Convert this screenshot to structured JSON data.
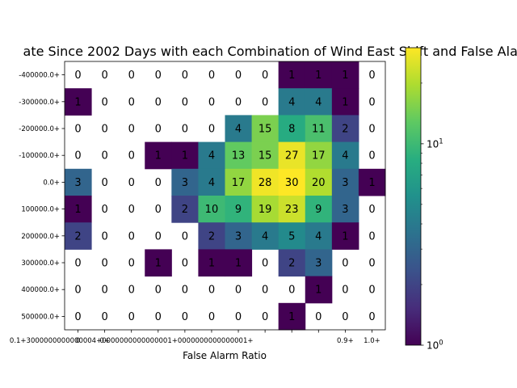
{
  "chart_data": {
    "type": "heatmap",
    "title": "ate Since 2002 Days with each Combination of Wind East Shift and False Alar",
    "xlabel": "False Alarm Ratio",
    "ylabel": "",
    "x_ticks": [
      "0",
      "0+",
      "0.1+",
      "0.2+",
      "0.3+",
      "0.4+",
      "0.5+",
      "0.6+",
      "0.7+",
      "0.8+",
      "0.9+",
      "1.0+"
    ],
    "x_tick_display": [
      "0",
      "0+",
      "0.1+3000000000000004+0000000000000001+0000000000000001+",
      "",
      "",
      "",
      "",
      "",
      "",
      "",
      "0.9+",
      "1.0+"
    ],
    "y_ticks": [
      "-400000.0+",
      "-300000.0+",
      "-200000.0+",
      "-100000.0+",
      "0.0+",
      "100000.0+",
      "200000.0+",
      "300000.0+",
      "400000.0+",
      "500000.0+"
    ],
    "values": [
      [
        0,
        0,
        0,
        0,
        0,
        0,
        0,
        0,
        1,
        1,
        1,
        0
      ],
      [
        1,
        0,
        0,
        0,
        0,
        0,
        0,
        0,
        4,
        4,
        1,
        0
      ],
      [
        0,
        0,
        0,
        0,
        0,
        0,
        4,
        15,
        8,
        11,
        2,
        0
      ],
      [
        0,
        0,
        0,
        1,
        1,
        4,
        13,
        15,
        27,
        17,
        4,
        0
      ],
      [
        3,
        0,
        0,
        0,
        3,
        4,
        17,
        28,
        30,
        20,
        3,
        1
      ],
      [
        1,
        0,
        0,
        0,
        2,
        10,
        9,
        19,
        23,
        9,
        3,
        0
      ],
      [
        2,
        0,
        0,
        0,
        0,
        2,
        3,
        4,
        5,
        4,
        1,
        0
      ],
      [
        0,
        0,
        0,
        1,
        0,
        1,
        1,
        0,
        2,
        3,
        0,
        0
      ],
      [
        0,
        0,
        0,
        0,
        0,
        0,
        0,
        0,
        0,
        1,
        0,
        0
      ],
      [
        0,
        0,
        0,
        0,
        0,
        0,
        0,
        0,
        1,
        0,
        0,
        0
      ]
    ],
    "colorscale": "viridis",
    "color_scale_type": "log",
    "zlim": [
      1,
      30
    ],
    "colorbar_ticks": [
      {
        "label": "10",
        "sup": "0",
        "value": 1
      },
      {
        "label": "10",
        "sup": "1",
        "value": 10
      }
    ]
  }
}
